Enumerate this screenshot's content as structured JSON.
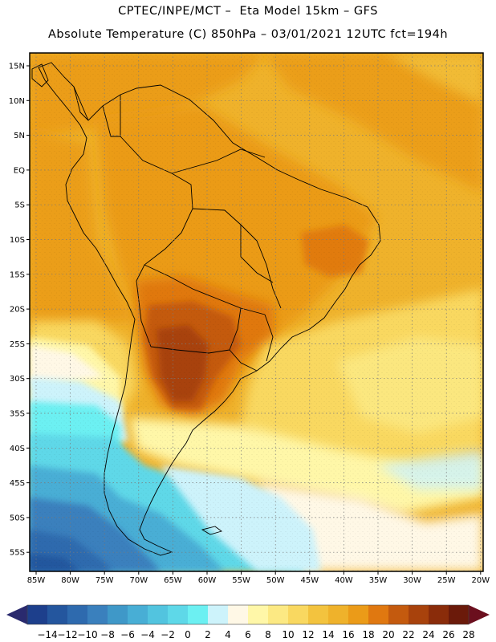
{
  "header": {
    "line1": "CPTEC/INPE/MCT –  Eta Model 15km – GFS",
    "line2": "Absolute Temperature (C) 850hPa – 03/01/2021 12UTC fct=194h"
  },
  "map": {
    "lat_labels": [
      "15N",
      "10N",
      "5N",
      "EQ",
      "5S",
      "10S",
      "15S",
      "20S",
      "25S",
      "30S",
      "35S",
      "40S",
      "45S",
      "50S",
      "55S"
    ],
    "lon_labels": [
      "85W",
      "80W",
      "75W",
      "70W",
      "65W",
      "60W",
      "55W",
      "50W",
      "45W",
      "40W",
      "35W",
      "30W",
      "25W",
      "20W"
    ]
  },
  "colorbar": {
    "labels": [
      "-14",
      "-12",
      "-10",
      "-8",
      "-6",
      "-4",
      "-2",
      "0",
      "2",
      "4",
      "6",
      "8",
      "10",
      "12",
      "14",
      "16",
      "18",
      "20",
      "22",
      "24",
      "26",
      "28"
    ],
    "colors": [
      "#1d3f8c",
      "#24569e",
      "#2e6aae",
      "#3a80bd",
      "#3f98c8",
      "#48aed5",
      "#52c4df",
      "#5ed8e8",
      "#6cf0f2",
      "#cdf3fb",
      "#fff8e6",
      "#fff7a8",
      "#fce983",
      "#f9d860",
      "#f3c33e",
      "#efb22b",
      "#eb9b18",
      "#e07810",
      "#c45a0e",
      "#a8420c",
      "#8a2c0a",
      "#6b1a0a"
    ],
    "left_arrow_color": "#2a2a6e",
    "right_arrow_color": "#6b0f1e"
  }
}
